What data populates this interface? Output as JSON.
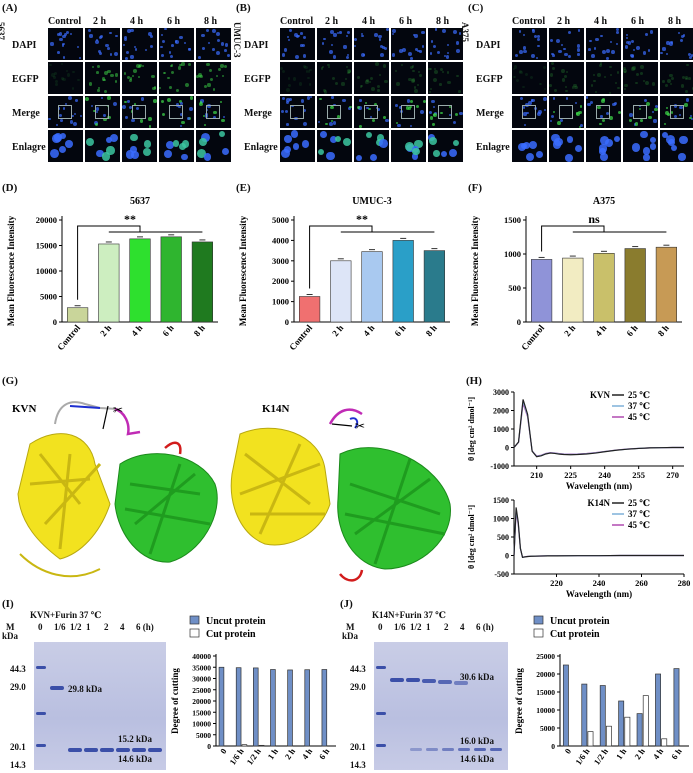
{
  "panel_letters": {
    "A": "(A)",
    "B": "(B)",
    "C": "(C)",
    "D": "(D)",
    "E": "(E)",
    "F": "(F)",
    "G": "(G)",
    "H": "(H)",
    "I": "(I)",
    "J": "(J)"
  },
  "micro_panels": [
    {
      "cell_line": "5637",
      "columns": [
        "Control",
        "2 h",
        "4 h",
        "6 h",
        "8 h"
      ],
      "rows": [
        "DAPI",
        "EGFP",
        "Merge",
        "Enlagre"
      ]
    },
    {
      "cell_line": "UMUC-3",
      "columns": [
        "Control",
        "2 h",
        "4 h",
        "6 h",
        "8 h"
      ],
      "rows": [
        "DAPI",
        "EGFP",
        "Merge",
        "Enlagre"
      ]
    },
    {
      "cell_line": "A375",
      "columns": [
        "Control",
        "2 h",
        "4 h",
        "6 h",
        "8 h"
      ],
      "rows": [
        "DAPI",
        "EGFP",
        "Merge",
        "Enlagre"
      ]
    }
  ],
  "colors": {
    "dapi": "#3a6cff",
    "egfp": "#3fdc4a",
    "yellow_domain": "#f2e21f",
    "green_domain": "#2fbf2f",
    "linker_magenta": "#c02bb5",
    "linker_blue": "#1e2fd0",
    "tail_red": "#d21c1c"
  },
  "structure": {
    "left_label": "KVN",
    "right_label": "K14N"
  },
  "chart_data": [
    {
      "type": "bar",
      "title": "5637",
      "ylabel": "Mean Fluorescence Intensity",
      "categories": [
        "Control",
        "2 h",
        "4 h",
        "6 h",
        "8 h"
      ],
      "values": [
        2800,
        15300,
        16300,
        16700,
        15700
      ],
      "ylim": [
        0,
        20000
      ],
      "yticks": [
        "0",
        "5000",
        "10000",
        "15000",
        "20000"
      ],
      "significance": "**",
      "colors": [
        "#c9d59a",
        "#cdeec0",
        "#2ee02e",
        "#2fb52f",
        "#1f7a1f"
      ]
    },
    {
      "type": "bar",
      "title": "UMUC-3",
      "ylabel": "Mean Fluorescence Intensity",
      "categories": [
        "Control",
        "2 h",
        "4 h",
        "6 h",
        "8 h"
      ],
      "values": [
        1250,
        3000,
        3450,
        4000,
        3500
      ],
      "ylim": [
        0,
        5000
      ],
      "yticks": [
        "0",
        "1000",
        "2000",
        "3000",
        "4000",
        "5000"
      ],
      "significance": "**",
      "colors": [
        "#f07070",
        "#dde5f7",
        "#a9c9f0",
        "#2a9fc8",
        "#2a7b8c"
      ]
    },
    {
      "type": "bar",
      "title": "A375",
      "ylabel": "Mean Fluorescence Intensity",
      "categories": [
        "Control",
        "2 h",
        "4 h",
        "6 h",
        "8 h"
      ],
      "values": [
        920,
        940,
        1010,
        1080,
        1100
      ],
      "ylim": [
        0,
        1500
      ],
      "yticks": [
        "0",
        "500",
        "1000",
        "1500"
      ],
      "significance": "ns",
      "colors": [
        "#8f93d8",
        "#f2ecc2",
        "#c9c06a",
        "#8a7c2e",
        "#c79a55"
      ]
    },
    {
      "type": "line",
      "ylabel": "θ [deg cm² dmol⁻¹]",
      "xlabel": "Wavelength (nm)",
      "xticks": [
        "210",
        "225",
        "240",
        "255",
        "270"
      ],
      "xlim": [
        200,
        275
      ],
      "yticks": [
        "-1000",
        "0",
        "1000",
        "2000",
        "3000"
      ],
      "ylim": [
        -1000,
        3000
      ],
      "legend_title": "KVN",
      "series": [
        {
          "name": "25 ℃",
          "color": "#222222"
        },
        {
          "name": "37 ℃",
          "color": "#7eb0d8"
        },
        {
          "name": "45 ℃",
          "color": "#b04ab0"
        }
      ],
      "x": [
        200,
        202,
        204,
        206,
        208,
        210,
        212,
        214,
        216,
        218,
        220,
        222,
        225,
        228,
        232,
        236,
        240,
        245,
        250,
        255,
        260,
        265,
        270,
        275
      ],
      "y": [
        0,
        300,
        2600,
        1800,
        -200,
        -500,
        -450,
        -350,
        -300,
        -320,
        -360,
        -380,
        -390,
        -380,
        -350,
        -300,
        -230,
        -150,
        -90,
        -50,
        -20,
        -10,
        0,
        0
      ]
    },
    {
      "type": "line",
      "ylabel": "θ [deg cm² dmol⁻¹]",
      "xlabel": "Wavelength (nm)",
      "xticks": [
        "220",
        "240",
        "260",
        "280"
      ],
      "xlim": [
        200,
        280
      ],
      "yticks": [
        "-500",
        "0",
        "500",
        "1000",
        "1500"
      ],
      "ylim": [
        -500,
        1500
      ],
      "legend_title": "K14N",
      "series": [
        {
          "name": "25 ℃",
          "color": "#222222"
        },
        {
          "name": "37 ℃",
          "color": "#7eb0d8"
        },
        {
          "name": "45 ℃",
          "color": "#b04ab0"
        }
      ],
      "x": [
        200,
        201,
        202,
        203,
        204,
        206,
        208,
        212,
        216,
        220,
        230,
        240,
        250,
        260,
        270,
        280
      ],
      "y": [
        0,
        1300,
        900,
        200,
        -50,
        -30,
        -20,
        -15,
        -10,
        -10,
        -5,
        -5,
        0,
        0,
        0,
        0
      ]
    },
    {
      "type": "bar",
      "ylabel": "Degree of cutting",
      "categories": [
        "0",
        "1/6 h",
        "1/2 h",
        "1 h",
        "2 h",
        "4 h",
        "6 h"
      ],
      "ylim": [
        0,
        40000
      ],
      "yticks": [
        "0",
        "5000",
        "10000",
        "15000",
        "20000",
        "25000",
        "30000",
        "35000",
        "40000"
      ],
      "series": [
        {
          "name": "Uncut protein",
          "color": "#6f8fc6",
          "values": [
            35000,
            34800,
            34700,
            34000,
            33800,
            33900,
            34000
          ]
        },
        {
          "name": "Cut protein",
          "color": "#ffffff",
          "values": [
            0,
            600,
            300,
            0,
            0,
            0,
            0
          ]
        }
      ]
    },
    {
      "type": "bar",
      "ylabel": "Degree of cutting",
      "categories": [
        "0",
        "1/6 h",
        "1/2 h",
        "1 h",
        "2 h",
        "4 h",
        "6 h"
      ],
      "ylim": [
        0,
        25000
      ],
      "yticks": [
        "0",
        "5000",
        "10000",
        "15000",
        "20000",
        "25000"
      ],
      "series": [
        {
          "name": "Uncut protein",
          "color": "#6f8fc6",
          "values": [
            22500,
            17200,
            16800,
            12500,
            9000,
            20000,
            21500
          ]
        },
        {
          "name": "Cut protein",
          "color": "#ffffff",
          "values": [
            0,
            4000,
            5500,
            8000,
            14000,
            2000,
            0
          ]
        }
      ]
    }
  ],
  "gel_I": {
    "title": "KVN+Furin 37 ℃",
    "lanes": [
      "M",
      "0",
      "1/6",
      "1/2",
      "1",
      "2",
      "4",
      "6 (h)"
    ],
    "kda_label": "kDa",
    "markers": [
      "44.3",
      "29.0",
      "20.1",
      "14.3"
    ],
    "band_labels": [
      "29.8 kDa",
      "15.2 kDa",
      "14.6 kDa"
    ]
  },
  "gel_J": {
    "title": "K14N+Furin 37 ℃",
    "lanes": [
      "M",
      "0",
      "1/6",
      "1/2",
      "1",
      "2",
      "4",
      "6 (h)"
    ],
    "kda_label": "kDa",
    "markers": [
      "44.3",
      "29.0",
      "20.1",
      "14.3"
    ],
    "band_labels": [
      "30.6 kDa",
      "16.0 kDa",
      "14.6 kDa"
    ]
  }
}
